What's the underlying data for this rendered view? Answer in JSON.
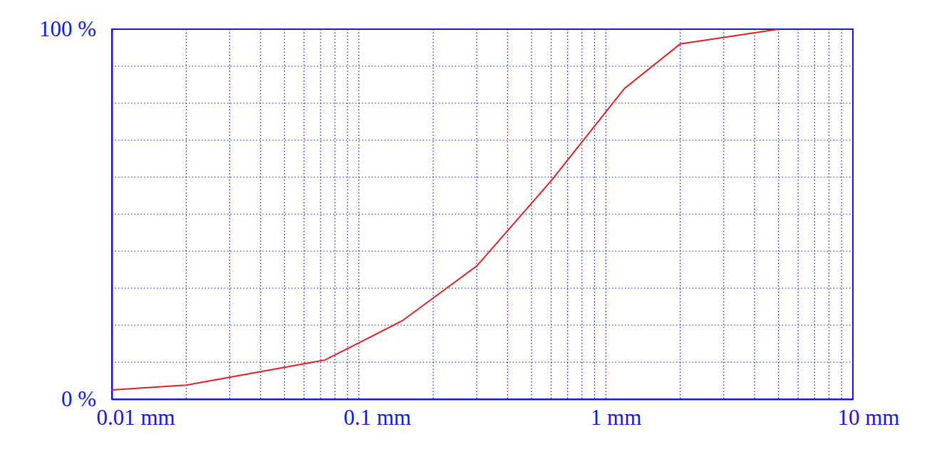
{
  "chart_data": {
    "type": "line",
    "x": [
      0.01,
      0.02,
      0.073,
      0.15,
      0.3,
      0.6,
      1.19,
      2.0,
      5.0
    ],
    "values": [
      2.5,
      3.8,
      10.6,
      21.2,
      36,
      59,
      84,
      96,
      100
    ],
    "color": "#e41e1e",
    "xlim": [
      0.01,
      10
    ],
    "ylim": [
      0,
      100
    ],
    "xticks": [
      {
        "value": 0.01,
        "label": "0.01 mm"
      },
      {
        "value": 0.1,
        "label": "0.1 mm"
      },
      {
        "value": 1,
        "label": "1 mm"
      },
      {
        "value": 10,
        "label": "10 mm"
      }
    ],
    "yticks": [
      {
        "value": 0,
        "label": "0 %"
      },
      {
        "value": 100,
        "label": "100 %"
      }
    ],
    "log": "x",
    "grid": true
  }
}
